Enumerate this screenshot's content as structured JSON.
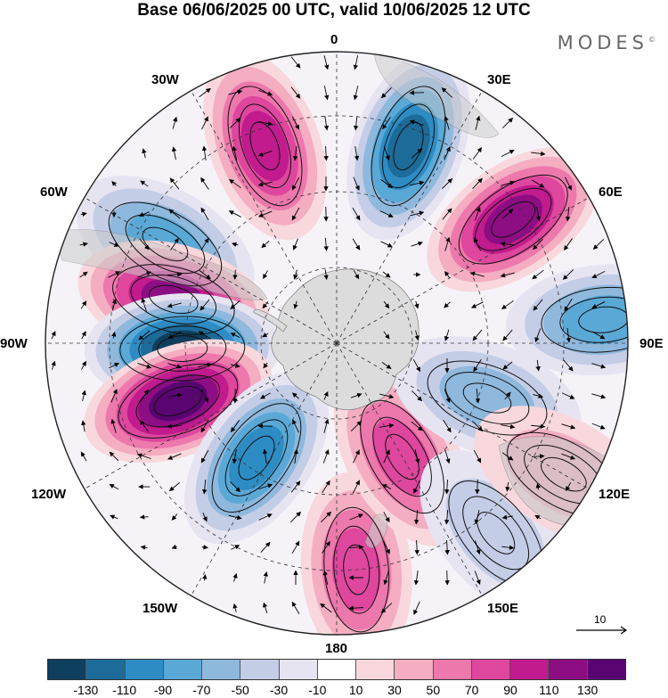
{
  "title": "Base 06/06/2025 00 UTC, valid 10/06/2025 12 UTC",
  "brand": "MODES",
  "brand_mark": "©",
  "longitude_labels": {
    "n0": "0",
    "e30": "30E",
    "e60": "60E",
    "e90": "90E",
    "e120": "120E",
    "e150": "150E",
    "s180": "180",
    "w150": "150W",
    "w120": "120W",
    "w90": "90W",
    "w60": "60W",
    "w30": "30W"
  },
  "vector_reference": "10",
  "colors": {
    "palette": [
      "#0f3f5e",
      "#1d6b99",
      "#2e8cc4",
      "#5aa8d6",
      "#8fb8dd",
      "#c4cde6",
      "#e7e4f2",
      "#ffffff",
      "#f8d8dc",
      "#f4adc1",
      "#ed78ac",
      "#de479d",
      "#c11b8e",
      "#8d0d83",
      "#5a0472"
    ],
    "land": "#d6d6d6",
    "antarctica": "#e0e0e0"
  },
  "colorbar": {
    "ticks": [
      "-130",
      "-110",
      "-90",
      "-70",
      "-50",
      "-30",
      "-10",
      "10",
      "30",
      "50",
      "70",
      "90",
      "110",
      "130"
    ]
  },
  "anomaly_centers": [
    {
      "lon": -20,
      "lat_ring": 0.72,
      "value": 95
    },
    {
      "lon": 20,
      "lat_ring": 0.72,
      "value": -115
    },
    {
      "lon": 55,
      "lat_ring": 0.74,
      "value": 100
    },
    {
      "lon": 85,
      "lat_ring": 0.92,
      "value": -70
    },
    {
      "lon": -60,
      "lat_ring": 0.68,
      "value": -60
    },
    {
      "lon": -75,
      "lat_ring": 0.58,
      "value": 115
    },
    {
      "lon": -92,
      "lat_ring": 0.53,
      "value": -135
    },
    {
      "lon": -110,
      "lat_ring": 0.58,
      "value": 130
    },
    {
      "lon": -145,
      "lat_ring": 0.48,
      "value": -80
    },
    {
      "lon": 175,
      "lat_ring": 0.78,
      "value": 70
    },
    {
      "lon": 150,
      "lat_ring": 0.45,
      "value": 60
    },
    {
      "lon": 110,
      "lat_ring": 0.55,
      "value": -40
    },
    {
      "lon": 140,
      "lat_ring": 0.85,
      "value": -30
    },
    {
      "lon": 120,
      "lat_ring": 0.9,
      "value": 20
    }
  ]
}
